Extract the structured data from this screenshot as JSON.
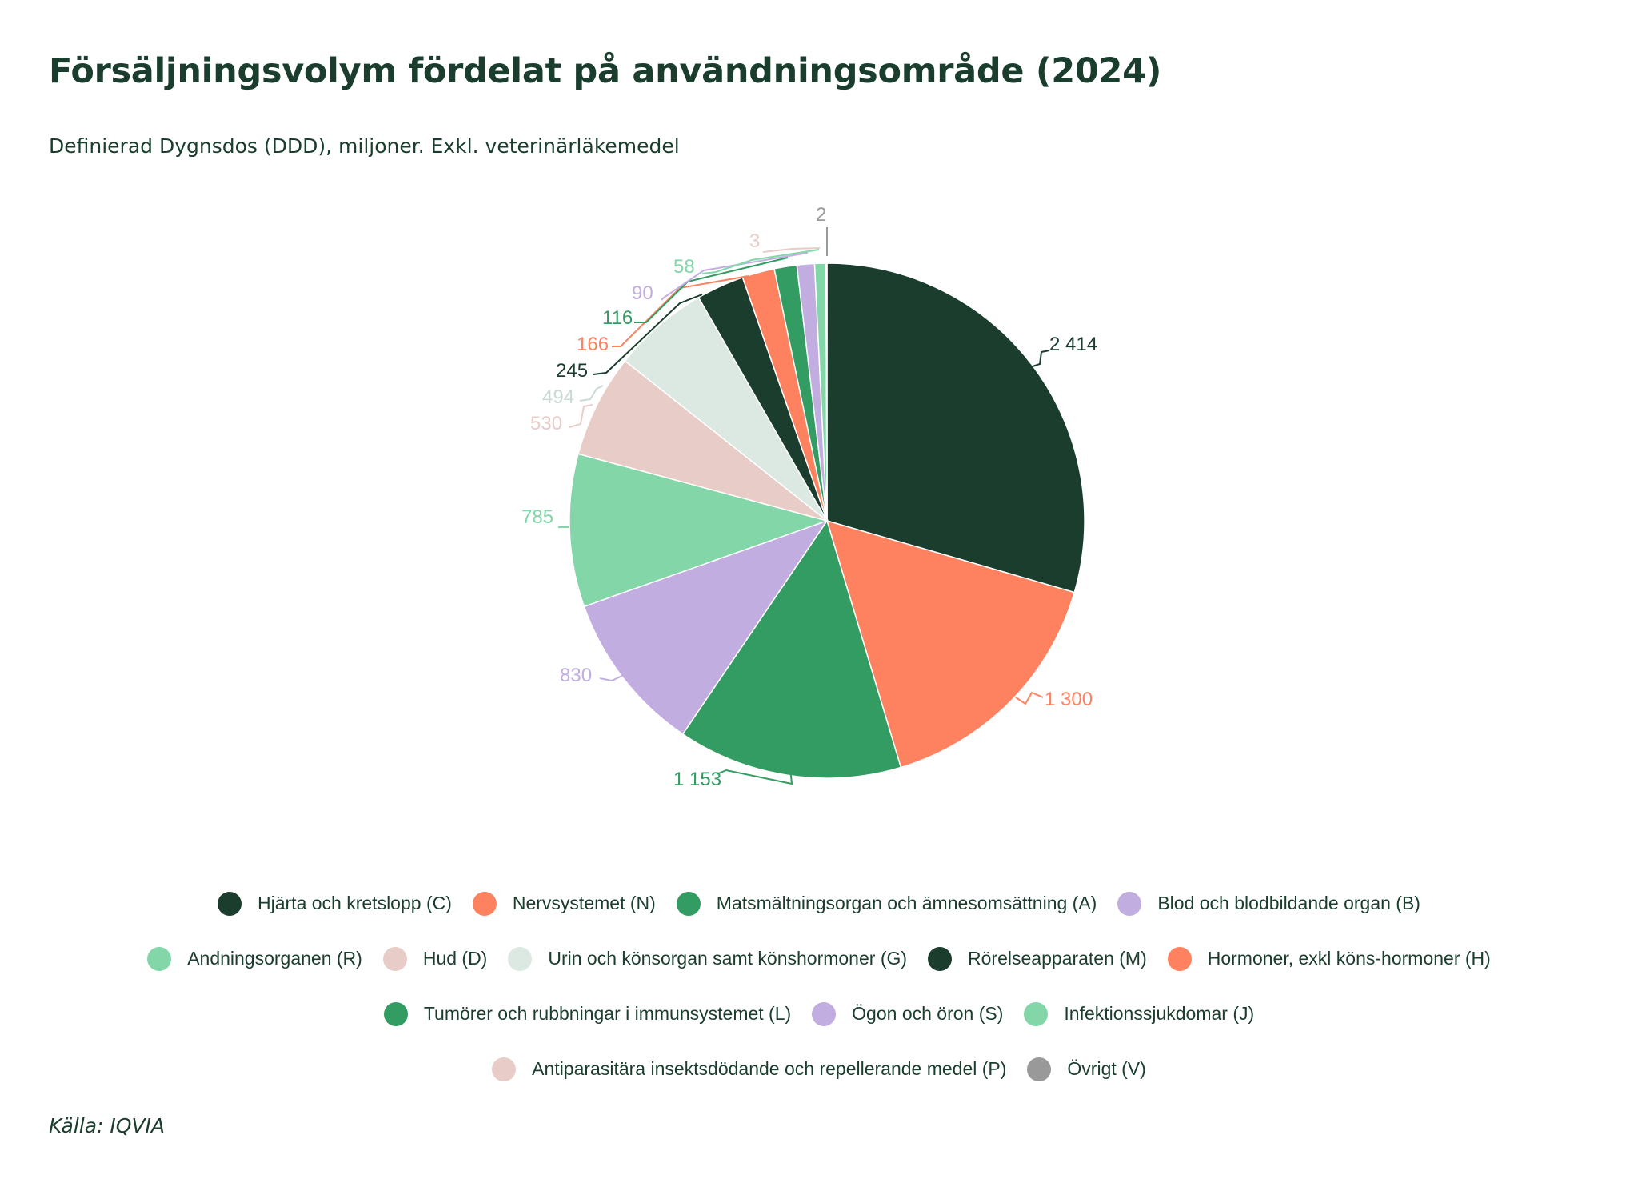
{
  "chart_data": {
    "type": "pie",
    "title": "Försäljningsvolym fördelat på användningsområde (2024)",
    "subtitle": "Definierad Dygnsdos (DDD), miljoner. Exkl. veterinärläkemedel",
    "source": "Källa: IQVIA",
    "legend_position": "bottom",
    "slices": [
      {
        "name": "Hjärta och kretslopp (C)",
        "value": 2414,
        "label": "2 414",
        "color": "#1a3d2e"
      },
      {
        "name": "Nervsystemet (N)",
        "value": 1300,
        "label": "1 300",
        "color": "#ff8260"
      },
      {
        "name": "Matsmältningsorgan och ämnesomsättning (A)",
        "value": 1153,
        "label": "1 153",
        "color": "#339c62"
      },
      {
        "name": "Blod och blodbildande organ (B)",
        "value": 830,
        "label": "830",
        "color": "#c1ade0"
      },
      {
        "name": "Andningsorganen (R)",
        "value": 785,
        "label": "785",
        "color": "#83d6a8"
      },
      {
        "name": "Hud (D)",
        "value": 530,
        "label": "530",
        "color": "#e8ccc7"
      },
      {
        "name": "Urin och könsorgan samt könshormoner (G)",
        "value": 494,
        "label": "494",
        "color": "#dce8e2"
      },
      {
        "name": "Rörelseapparaten (M)",
        "value": 245,
        "label": "245",
        "color": "#1a3d2e"
      },
      {
        "name": "Hormoner, exkl köns-hormoner (H)",
        "value": 166,
        "label": "166",
        "color": "#ff8260"
      },
      {
        "name": "Tumörer och rubbningar i immunsystemet (L)",
        "value": 116,
        "label": "116",
        "color": "#339c62"
      },
      {
        "name": "Ögon och öron (S)",
        "value": 90,
        "label": "90",
        "color": "#c1ade0"
      },
      {
        "name": "Infektionssjukdomar (J)",
        "value": 58,
        "label": "58",
        "color": "#83d6a8"
      },
      {
        "name": "Antiparasitära insektsdödande och repellerande medel (P)",
        "value": 3,
        "label": "3",
        "color": "#e8ccc7"
      },
      {
        "name": "Övrigt (V)",
        "value": 2,
        "label": "2",
        "color": "#999999"
      }
    ]
  }
}
